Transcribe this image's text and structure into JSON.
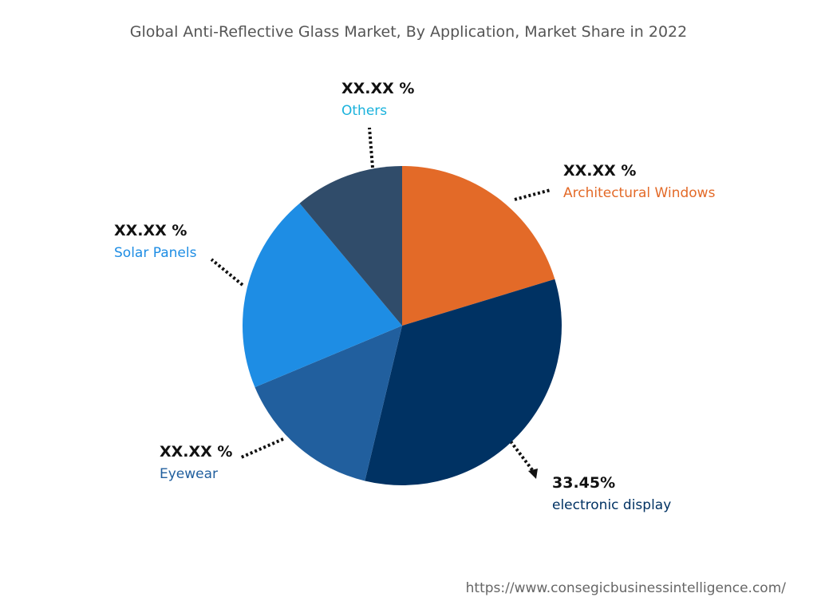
{
  "chart_data": {
    "type": "pie",
    "title": "Global Anti-Reflective Glass Market, By Application, Market Share in 2022",
    "categories": [
      "Architectural Windows",
      "electronic display",
      "Eyewear",
      "Solar Panels",
      "Others"
    ],
    "values": [
      20.3,
      33.45,
      14.95,
      20.2,
      11.1
    ],
    "value_labels": [
      "XX.XX %",
      "33.45%",
      "XX.XX %",
      "XX.XX %",
      "XX.XX %"
    ],
    "colors": [
      "#e36a28",
      "#003263",
      "#215f9e",
      "#1e8de4",
      "#304c6a"
    ],
    "label_colors": [
      "#e36a28",
      "#003263",
      "#215f9e",
      "#1e8de4",
      "#1ab2dc"
    ],
    "source": "https://www.consegicbusinessintelligence.com/"
  }
}
